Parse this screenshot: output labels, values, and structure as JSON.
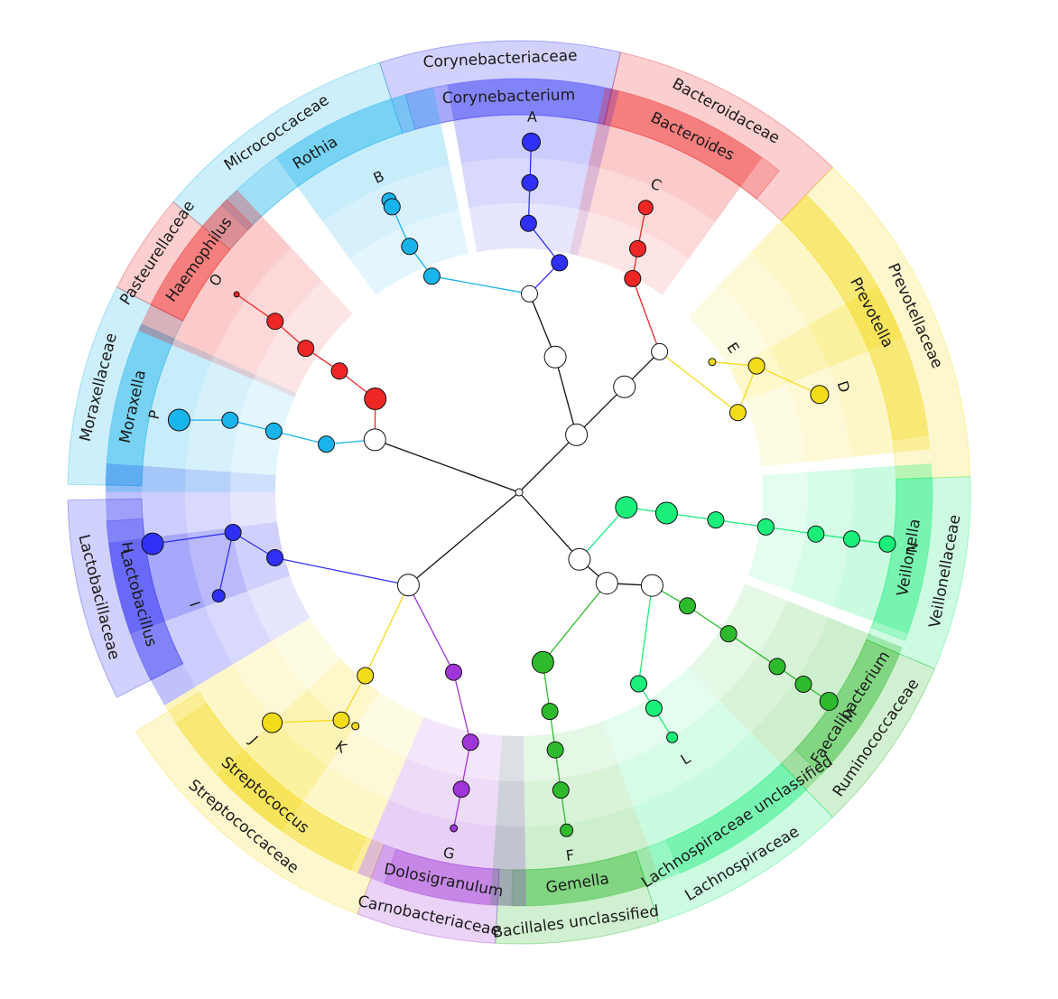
{
  "clades": [
    {
      "leaf": "A",
      "genus": "Corynebacterium",
      "family": "Corynebacteriaceae",
      "color": "#2f2ff5"
    },
    {
      "leaf": "B",
      "genus": "Rothia",
      "family": "Micrococcaceae",
      "color": "#1ab4ec"
    },
    {
      "leaf": "C",
      "genus": "Bacteroides",
      "family": "Bacteroidaceae",
      "color": "#ef2626"
    },
    {
      "leaf": "E",
      "genus": "Prevotella",
      "family": "Prevotellaceae",
      "color": "#f5dc1a"
    },
    {
      "leaf": "D",
      "genus": "Prevotella",
      "family": "Prevotellaceae",
      "color": "#f5dc1a"
    },
    {
      "leaf": "N",
      "genus": "Veillonella",
      "family": "Veillonellaceae",
      "color": "#1aef7a"
    },
    {
      "leaf": "M",
      "genus": "Faecalibacterium",
      "family": "Ruminococcaceae",
      "color": "#2dbb2d"
    },
    {
      "leaf": "L",
      "genus": "Lachnospiraceae unclassified",
      "family": "Lachnospiraceae",
      "color": "#1aef7a"
    },
    {
      "leaf": "F",
      "genus": "Gemella",
      "family": "Bacillales unclassified",
      "color": "#2dbb2d"
    },
    {
      "leaf": "G",
      "genus": "Dolosigranulum",
      "family": "Carnobacteriaceae",
      "color": "#a035d8"
    },
    {
      "leaf": "K",
      "genus": "Streptococcus",
      "family": "Streptococcaceae",
      "color": "#f5dc1a"
    },
    {
      "leaf": "J",
      "genus": "Streptococcus",
      "family": "Streptococcaceae",
      "color": "#f5dc1a"
    },
    {
      "leaf": "I",
      "genus": "Lactobacillus",
      "family": "Lactobacillaceae",
      "color": "#2f2ff5"
    },
    {
      "leaf": "H",
      "genus": "Lactobacillus",
      "family": "Lactobacillaceae",
      "color": "#2f2ff5"
    },
    {
      "leaf": "P",
      "genus": "Moraxella",
      "family": "Moraxellaceae",
      "color": "#1ab4ec"
    },
    {
      "leaf": "O",
      "genus": "Haemophilus",
      "family": "Pasteurellaceae",
      "color": "#ef2626"
    }
  ],
  "families": [
    "Corynebacteriaceae",
    "Micrococcaceae",
    "Bacteroidaceae",
    "Prevotellaceae",
    "Veillonellaceae",
    "Ruminococcaceae",
    "Lachnospiraceae",
    "Bacillales unclassified",
    "Carnobacteriaceae",
    "Streptococcaceae",
    "Lactobacillaceae",
    "Moraxellaceae",
    "Pasteurellaceae"
  ],
  "genera": [
    "Corynebacterium",
    "Rothia",
    "Bacteroides",
    "Prevotella",
    "Veillonella",
    "Faecalibacterium",
    "Lachnospiraceae unclassified",
    "Gemella",
    "Dolosigranulum",
    "Streptococcus",
    "Lactobacillus",
    "Moraxella",
    "Haemophilus"
  ],
  "leaves": [
    "A",
    "B",
    "C",
    "D",
    "E",
    "F",
    "G",
    "H",
    "I",
    "J",
    "K",
    "L",
    "M",
    "N",
    "O",
    "P"
  ]
}
